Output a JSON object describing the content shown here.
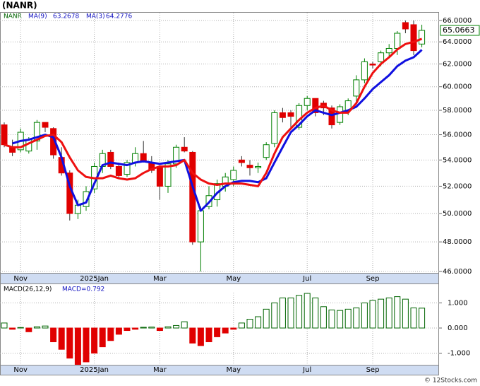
{
  "title": "(NANR)",
  "footer": "© 12Stocks.com",
  "chart_data": [
    {
      "type": "candlestick",
      "name": "NANR",
      "log_scale": true,
      "grid": true,
      "up_color": "#008000",
      "down_color": "#e00000",
      "categories": [
        null,
        null,
        "Nov",
        null,
        null,
        null,
        null,
        null,
        null,
        null,
        null,
        "2025Jan",
        null,
        null,
        null,
        null,
        null,
        null,
        null,
        "Mar",
        null,
        null,
        null,
        null,
        null,
        null,
        null,
        null,
        "May",
        null,
        null,
        null,
        null,
        null,
        null,
        null,
        null,
        "Jul",
        null,
        null,
        null,
        null,
        null,
        null,
        null,
        "Sep",
        null,
        null,
        null,
        null,
        null,
        null
      ],
      "open": [
        56.8,
        55.0,
        54.8,
        54.7,
        55.5,
        57.0,
        56.5,
        54.2,
        53.0,
        50.0,
        50.5,
        51.8,
        53.5,
        54.6,
        53.5,
        52.9,
        53.8,
        54.5,
        53.8,
        53.4,
        52.0,
        53.7,
        55.0,
        54.6,
        48.0,
        50.5,
        51.0,
        52.0,
        52.5,
        54.0,
        53.6,
        53.4,
        54.2,
        55.3,
        57.8,
        57.8,
        56.6,
        58.4,
        59.0,
        58.6,
        58.2,
        57.0,
        58.0,
        59.2,
        60.6,
        62.0,
        62.2,
        63.0,
        63.4,
        65.8,
        65.6,
        63.8
      ],
      "high": [
        57.0,
        55.6,
        56.5,
        55.8,
        57.2,
        57.0,
        56.6,
        55.0,
        53.2,
        51.0,
        52.0,
        53.8,
        54.8,
        54.8,
        53.8,
        54.0,
        55.0,
        55.5,
        54.3,
        53.6,
        54.0,
        55.2,
        55.8,
        54.7,
        50.5,
        52.0,
        52.5,
        53.0,
        53.5,
        54.3,
        54.0,
        53.8,
        55.4,
        58.0,
        58.2,
        58.0,
        58.6,
        59.2,
        59.0,
        58.8,
        58.4,
        58.5,
        59.0,
        61.0,
        62.5,
        62.2,
        63.2,
        63.8,
        65.0,
        66.0,
        66.0,
        65.6
      ],
      "low": [
        55.0,
        54.3,
        54.6,
        54.5,
        54.8,
        56.2,
        54.1,
        52.8,
        49.5,
        49.6,
        50.2,
        51.5,
        53.0,
        53.3,
        52.6,
        52.7,
        53.5,
        53.8,
        53.0,
        51.0,
        51.5,
        53.4,
        54.6,
        47.8,
        46.0,
        50.3,
        50.5,
        51.6,
        52.0,
        53.5,
        52.8,
        53.0,
        54.0,
        55.0,
        57.0,
        56.4,
        56.4,
        58.0,
        57.5,
        57.6,
        56.5,
        56.8,
        57.6,
        58.5,
        60.3,
        61.6,
        61.8,
        62.6,
        62.8,
        64.8,
        62.8,
        63.5
      ],
      "close": [
        55.2,
        54.6,
        56.2,
        55.6,
        57.0,
        56.6,
        54.4,
        53.0,
        50.0,
        50.6,
        51.6,
        53.5,
        54.5,
        53.5,
        52.8,
        53.8,
        54.5,
        53.9,
        53.2,
        52.0,
        53.7,
        55.0,
        54.7,
        48.0,
        50.2,
        51.3,
        52.2,
        52.7,
        53.2,
        53.8,
        53.4,
        53.5,
        55.2,
        57.8,
        57.4,
        57.5,
        58.4,
        59.0,
        57.8,
        58.2,
        56.8,
        58.3,
        58.8,
        60.6,
        62.2,
        61.9,
        63.0,
        63.4,
        64.8,
        65.2,
        63.2,
        65.0663
      ],
      "last_price": {
        "value": 65.0663,
        "label": "65.0663"
      },
      "lines": [
        {
          "name": "MA(9)",
          "color": "#1010e0",
          "last_value": 63.2678,
          "values": [
            null,
            55.3,
            55.5,
            55.6,
            55.8,
            56.0,
            55.8,
            54.2,
            52.0,
            50.6,
            50.8,
            52.2,
            53.6,
            53.8,
            53.7,
            53.6,
            53.8,
            53.9,
            53.8,
            53.7,
            53.8,
            53.9,
            54.0,
            52.0,
            50.2,
            50.8,
            51.5,
            52.0,
            52.3,
            52.4,
            52.4,
            52.3,
            52.6,
            53.8,
            55.0,
            56.2,
            56.8,
            57.5,
            58.0,
            57.8,
            57.6,
            57.8,
            58.0,
            58.3,
            59.0,
            59.8,
            60.4,
            61.0,
            61.8,
            62.3,
            62.6,
            63.27
          ]
        },
        {
          "name": "MA(3)",
          "color": "#ee1010",
          "last_value": 64.2776,
          "values": [
            55.2,
            55.0,
            55.0,
            55.3,
            55.6,
            55.9,
            56.0,
            55.4,
            54.2,
            53.2,
            52.7,
            52.6,
            52.6,
            52.8,
            52.6,
            52.5,
            52.6,
            53.0,
            53.3,
            53.5,
            53.5,
            53.6,
            54.0,
            53.0,
            52.5,
            52.2,
            52.1,
            52.2,
            52.2,
            52.2,
            52.1,
            52.0,
            53.0,
            54.5,
            55.8,
            56.5,
            57.2,
            57.8,
            58.2,
            58.4,
            58.0,
            57.8,
            57.8,
            58.6,
            60.0,
            61.2,
            62.0,
            62.6,
            63.3,
            63.8,
            64.0,
            64.28
          ]
        }
      ],
      "ylim": [
        45.86,
        66.74
      ],
      "yticks": [
        {
          "value": 46,
          "label": "46.0000"
        },
        {
          "value": 48,
          "label": "48.0000"
        },
        {
          "value": 50,
          "label": "50.0000"
        },
        {
          "value": 52,
          "label": "52.0000"
        },
        {
          "value": 54,
          "label": "54.0000"
        },
        {
          "value": 56,
          "label": "56.0000"
        },
        {
          "value": 58,
          "label": "58.0000"
        },
        {
          "value": 60,
          "label": "60.0000"
        },
        {
          "value": 62,
          "label": "62.0000"
        },
        {
          "value": 64,
          "label": "64.0000"
        },
        {
          "value": 66,
          "label": "66.0000"
        }
      ]
    },
    {
      "type": "bar",
      "title": "MACD(26,12,9)",
      "legend": "MACD=0.792",
      "grid": true,
      "up_color": "#006400",
      "down_color": "#e00000",
      "categories": [
        null,
        null,
        "Nov",
        null,
        null,
        null,
        null,
        null,
        null,
        null,
        null,
        "2025Jan",
        null,
        null,
        null,
        null,
        null,
        null,
        null,
        "Mar",
        null,
        null,
        null,
        null,
        null,
        null,
        null,
        null,
        "May",
        null,
        null,
        null,
        null,
        null,
        null,
        null,
        null,
        "Jul",
        null,
        null,
        null,
        null,
        null,
        null,
        null,
        "Sep",
        null,
        null,
        null,
        null,
        null,
        null
      ],
      "values": [
        0.2,
        -0.05,
        0.02,
        -0.15,
        0.05,
        0.08,
        -0.55,
        -0.85,
        -1.2,
        -1.45,
        -1.35,
        -1.0,
        -0.75,
        -0.5,
        -0.25,
        -0.1,
        -0.05,
        0.03,
        0.04,
        -0.1,
        0.05,
        0.1,
        0.25,
        -0.6,
        -0.7,
        -0.55,
        -0.35,
        -0.2,
        -0.05,
        0.2,
        0.35,
        0.45,
        0.75,
        1.0,
        1.2,
        1.2,
        1.3,
        1.38,
        1.2,
        0.85,
        0.72,
        0.7,
        0.75,
        0.8,
        1.0,
        1.1,
        1.15,
        1.2,
        1.25,
        1.15,
        0.8,
        0.792
      ],
      "ylim": [
        -1.465,
        1.746
      ],
      "yticks": [
        {
          "value": 1,
          "label": "1.000"
        },
        {
          "value": 0,
          "label": "0.000"
        },
        {
          "value": -1,
          "label": "-1.000"
        }
      ]
    }
  ]
}
